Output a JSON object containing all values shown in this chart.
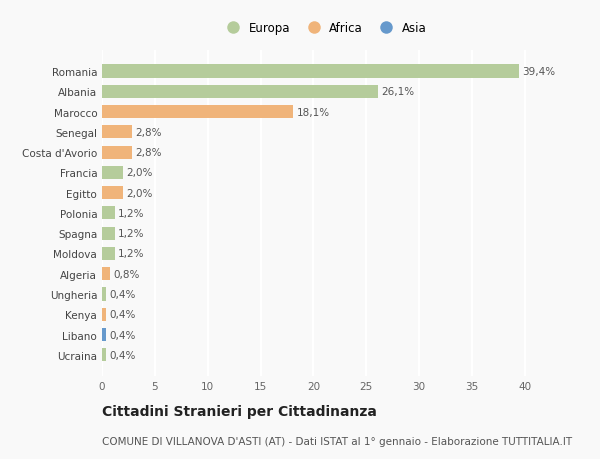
{
  "categories": [
    "Romania",
    "Albania",
    "Marocco",
    "Senegal",
    "Costa d'Avorio",
    "Francia",
    "Egitto",
    "Polonia",
    "Spagna",
    "Moldova",
    "Algeria",
    "Ungheria",
    "Kenya",
    "Libano",
    "Ucraina"
  ],
  "values": [
    39.4,
    26.1,
    18.1,
    2.8,
    2.8,
    2.0,
    2.0,
    1.2,
    1.2,
    1.2,
    0.8,
    0.4,
    0.4,
    0.4,
    0.4
  ],
  "labels": [
    "39,4%",
    "26,1%",
    "18,1%",
    "2,8%",
    "2,8%",
    "2,0%",
    "2,0%",
    "1,2%",
    "1,2%",
    "1,2%",
    "0,8%",
    "0,4%",
    "0,4%",
    "0,4%",
    "0,4%"
  ],
  "continents": [
    "Europa",
    "Europa",
    "Africa",
    "Africa",
    "Africa",
    "Europa",
    "Africa",
    "Europa",
    "Europa",
    "Europa",
    "Africa",
    "Europa",
    "Africa",
    "Asia",
    "Europa"
  ],
  "continent_colors": {
    "Europa": "#b5cc9b",
    "Africa": "#f0b47a",
    "Asia": "#6699cc"
  },
  "title": "Cittadini Stranieri per Cittadinanza",
  "subtitle": "COMUNE DI VILLANOVA D'ASTI (AT) - Dati ISTAT al 1° gennaio - Elaborazione TUTTITALIA.IT",
  "xlim": [
    0,
    42
  ],
  "xticks": [
    0,
    5,
    10,
    15,
    20,
    25,
    30,
    35,
    40
  ],
  "background_color": "#f9f9f9",
  "grid_color": "#ffffff",
  "bar_height": 0.65,
  "title_fontsize": 10,
  "subtitle_fontsize": 7.5,
  "label_fontsize": 7.5,
  "tick_fontsize": 7.5,
  "legend_fontsize": 8.5
}
